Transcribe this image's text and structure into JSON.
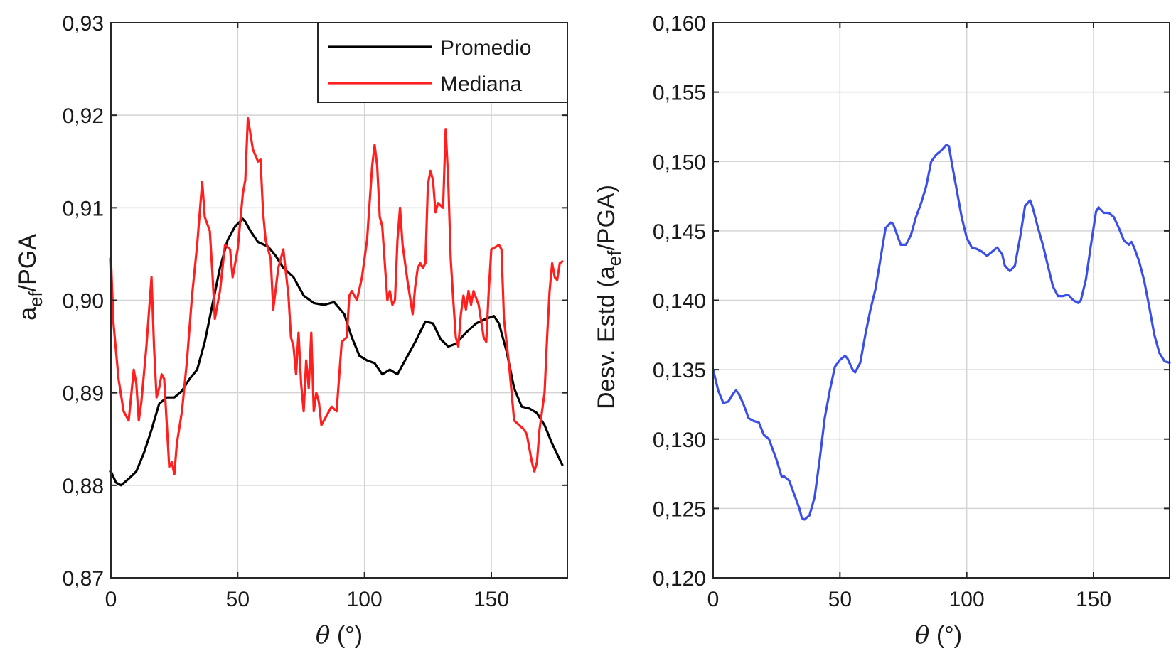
{
  "chart_data": [
    {
      "type": "line",
      "xlabel": "θ (°)",
      "ylabel": "a_ef/PGA",
      "xlim": [
        0,
        180
      ],
      "ylim": [
        0.87,
        0.93
      ],
      "xticks": [
        0,
        50,
        100,
        150
      ],
      "xtick_labels": [
        "0",
        "50",
        "100",
        "150"
      ],
      "yticks": [
        0.87,
        0.88,
        0.89,
        0.9,
        0.91,
        0.92,
        0.93
      ],
      "ytick_labels": [
        "0,87",
        "0,88",
        "0,89",
        "0,90",
        "0,91",
        "0,92",
        "0,93"
      ],
      "grid": true,
      "legend": "top-right",
      "series": [
        {
          "name": "Promedio",
          "color": "#000000",
          "x": [
            0,
            2,
            4,
            7,
            10,
            13,
            16,
            19,
            22,
            25,
            28,
            31,
            34,
            37,
            40,
            43,
            46,
            49,
            52,
            53,
            55,
            58,
            62,
            65,
            68,
            72,
            76,
            80,
            84,
            88,
            92,
            95,
            98,
            101,
            104,
            107,
            110,
            113,
            116,
            120,
            124,
            127,
            130,
            133,
            136,
            140,
            144,
            148,
            151,
            153,
            156,
            159,
            162,
            165,
            168,
            171,
            174,
            178
          ],
          "values": [
            0.8815,
            0.8803,
            0.88,
            0.8807,
            0.8815,
            0.8835,
            0.886,
            0.8888,
            0.8895,
            0.8895,
            0.8902,
            0.8915,
            0.8925,
            0.8955,
            0.8995,
            0.9035,
            0.9065,
            0.908,
            0.9088,
            0.9085,
            0.9075,
            0.9063,
            0.9058,
            0.9048,
            0.9035,
            0.9025,
            0.9005,
            0.8997,
            0.8995,
            0.8998,
            0.8985,
            0.896,
            0.894,
            0.8935,
            0.8932,
            0.892,
            0.8925,
            0.892,
            0.8935,
            0.8955,
            0.8977,
            0.8975,
            0.8958,
            0.895,
            0.8953,
            0.8965,
            0.8975,
            0.898,
            0.8983,
            0.8975,
            0.8945,
            0.8905,
            0.8885,
            0.8883,
            0.8878,
            0.8865,
            0.8845,
            0.8822
          ]
        },
        {
          "name": "Mediana",
          "color": "#ff1f1f",
          "x": [
            0,
            1,
            3,
            5,
            7,
            9,
            10,
            11,
            12,
            14,
            16,
            17,
            18,
            19,
            20,
            21,
            23,
            24,
            25,
            26,
            28,
            30,
            32,
            34,
            36,
            37,
            39,
            40,
            41,
            43,
            45,
            47,
            48,
            50,
            52,
            53,
            54,
            55,
            56,
            58,
            59,
            60,
            61,
            63,
            64,
            66,
            68,
            70,
            71,
            72,
            73,
            74,
            75,
            76,
            77,
            78,
            79,
            80,
            81,
            82,
            83,
            84,
            85,
            87,
            89,
            91,
            93,
            94,
            95,
            97,
            99,
            101,
            103,
            104,
            105,
            106,
            107,
            108,
            109,
            110,
            111,
            112,
            113,
            114,
            115,
            117,
            119,
            120,
            121,
            122,
            123,
            124,
            125,
            126,
            127,
            128,
            129,
            131,
            132,
            133,
            134,
            135,
            136,
            137,
            138,
            139,
            140,
            141,
            142,
            143,
            145,
            147,
            148,
            149,
            150,
            152,
            153,
            154,
            155,
            157,
            159,
            161,
            163,
            164,
            166,
            167,
            168,
            169,
            171,
            172,
            173,
            174,
            175,
            176,
            177,
            178
          ],
          "values": [
            0.9045,
            0.8975,
            0.8915,
            0.888,
            0.887,
            0.8925,
            0.891,
            0.887,
            0.889,
            0.895,
            0.9025,
            0.895,
            0.8895,
            0.8905,
            0.892,
            0.8915,
            0.882,
            0.8825,
            0.8812,
            0.8845,
            0.888,
            0.8935,
            0.9005,
            0.906,
            0.9128,
            0.909,
            0.9075,
            0.903,
            0.898,
            0.901,
            0.906,
            0.9055,
            0.9025,
            0.9055,
            0.9115,
            0.913,
            0.9197,
            0.918,
            0.9163,
            0.915,
            0.9152,
            0.9095,
            0.9065,
            0.9045,
            0.899,
            0.9035,
            0.9055,
            0.9005,
            0.896,
            0.895,
            0.892,
            0.8965,
            0.891,
            0.888,
            0.8935,
            0.8905,
            0.8965,
            0.888,
            0.89,
            0.889,
            0.8865,
            0.887,
            0.8875,
            0.8885,
            0.888,
            0.8955,
            0.896,
            0.9005,
            0.901,
            0.9,
            0.9025,
            0.9065,
            0.9145,
            0.9168,
            0.9145,
            0.909,
            0.908,
            0.904,
            0.9,
            0.901,
            0.8995,
            0.9,
            0.9065,
            0.91,
            0.906,
            0.902,
            0.8985,
            0.9015,
            0.9035,
            0.904,
            0.9035,
            0.904,
            0.9125,
            0.914,
            0.913,
            0.9095,
            0.9105,
            0.91,
            0.9185,
            0.913,
            0.9045,
            0.9,
            0.896,
            0.895,
            0.8985,
            0.9005,
            0.899,
            0.901,
            0.8995,
            0.901,
            0.8995,
            0.896,
            0.8955,
            0.901,
            0.9055,
            0.9058,
            0.906,
            0.9055,
            0.898,
            0.893,
            0.887,
            0.8865,
            0.886,
            0.8855,
            0.8825,
            0.8815,
            0.8825,
            0.886,
            0.89,
            0.896,
            0.901,
            0.904,
            0.9025,
            0.9022,
            0.904,
            0.9042
          ]
        }
      ]
    },
    {
      "type": "line",
      "xlabel": "θ (°)",
      "ylabel": "Desv. Estd (a_ef/PGA)",
      "xlim": [
        0,
        180
      ],
      "ylim": [
        0.12,
        0.16
      ],
      "xticks": [
        0,
        50,
        100,
        150
      ],
      "xtick_labels": [
        "0",
        "50",
        "100",
        "150"
      ],
      "yticks": [
        0.12,
        0.125,
        0.13,
        0.135,
        0.14,
        0.145,
        0.15,
        0.155,
        0.16
      ],
      "ytick_labels": [
        "0,120",
        "0,125",
        "0,130",
        "0,135",
        "0,140",
        "0,145",
        "0,150",
        "0,155",
        "0,160"
      ],
      "grid": true,
      "series": [
        {
          "color": "#3b4fe6",
          "x": [
            0,
            2,
            4,
            6,
            8,
            9,
            10,
            12,
            14,
            16,
            18,
            20,
            22,
            23,
            25,
            27,
            28,
            30,
            32,
            34,
            35,
            36,
            38,
            40,
            42,
            44,
            46,
            48,
            50,
            52,
            53,
            55,
            56,
            58,
            60,
            62,
            64,
            66,
            68,
            70,
            71,
            72,
            74,
            76,
            78,
            80,
            82,
            84,
            86,
            88,
            90,
            92,
            93,
            94,
            96,
            98,
            100,
            102,
            104,
            106,
            108,
            110,
            112,
            114,
            115,
            117,
            119,
            121,
            123,
            125,
            126,
            128,
            130,
            132,
            134,
            136,
            138,
            140,
            142,
            144,
            145,
            147,
            149,
            151,
            152,
            153,
            154,
            156,
            158,
            160,
            162,
            164,
            165,
            166,
            168,
            170,
            172,
            174,
            176,
            178,
            180
          ],
          "values": [
            0.135,
            0.1335,
            0.1326,
            0.1327,
            0.1333,
            0.1335,
            0.1333,
            0.1325,
            0.1315,
            0.1313,
            0.1312,
            0.1303,
            0.13,
            0.1295,
            0.1285,
            0.1273,
            0.1273,
            0.127,
            0.126,
            0.125,
            0.1243,
            0.1242,
            0.1245,
            0.1258,
            0.1285,
            0.1315,
            0.1335,
            0.1352,
            0.1357,
            0.136,
            0.1358,
            0.135,
            0.1348,
            0.1355,
            0.1375,
            0.1393,
            0.1408,
            0.143,
            0.1452,
            0.1456,
            0.1455,
            0.145,
            0.144,
            0.144,
            0.1447,
            0.146,
            0.147,
            0.1482,
            0.15,
            0.1505,
            0.1508,
            0.1512,
            0.1511,
            0.15,
            0.148,
            0.146,
            0.1445,
            0.1438,
            0.1437,
            0.1435,
            0.1432,
            0.1435,
            0.1438,
            0.1433,
            0.1425,
            0.1421,
            0.1425,
            0.1445,
            0.1468,
            0.1472,
            0.1467,
            0.1453,
            0.144,
            0.1425,
            0.141,
            0.1403,
            0.1403,
            0.1404,
            0.14,
            0.1398,
            0.14,
            0.1415,
            0.144,
            0.1464,
            0.1467,
            0.1465,
            0.1463,
            0.1463,
            0.146,
            0.1452,
            0.1443,
            0.144,
            0.1442,
            0.1438,
            0.1428,
            0.1414,
            0.1395,
            0.1375,
            0.1362,
            0.1356,
            0.1355
          ]
        }
      ]
    }
  ]
}
